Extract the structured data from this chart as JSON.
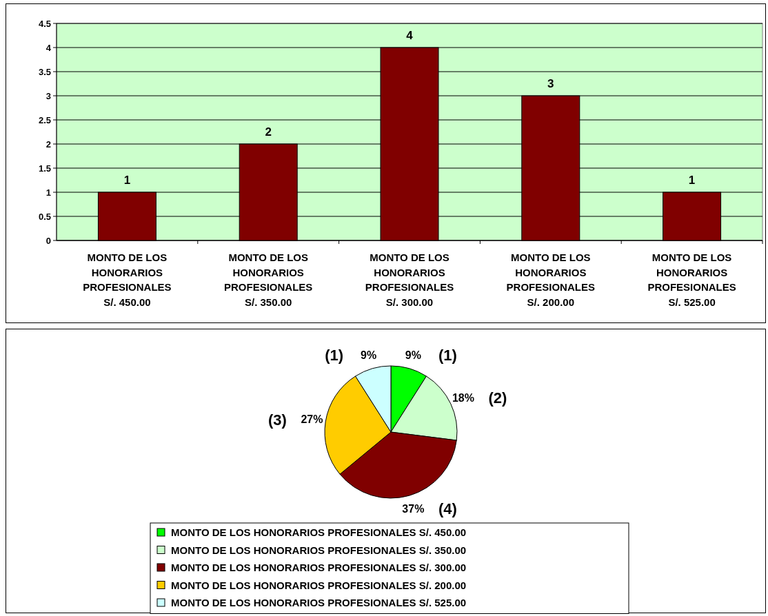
{
  "chart_data": [
    {
      "type": "bar",
      "categories": [
        "MONTO DE LOS HONORARIOS PROFESIONALES S/. 450.00",
        "MONTO DE LOS HONORARIOS PROFESIONALES S/. 350.00",
        "MONTO DE LOS HONORARIOS PROFESIONALES S/. 300.00",
        "MONTO DE LOS HONORARIOS PROFESIONALES S/. 200.00",
        "MONTO DE LOS HONORARIOS PROFESIONALES S/. 525.00"
      ],
      "values": [
        1,
        2,
        4,
        3,
        1
      ],
      "color": "#800000",
      "ylim": [
        0,
        4.5
      ],
      "yticks": [
        0,
        0.5,
        1,
        1.5,
        2,
        2.5,
        3,
        3.5,
        4,
        4.5
      ],
      "grid": "y",
      "data_labels": true
    },
    {
      "type": "pie",
      "categories": [
        "MONTO DE LOS HONORARIOS PROFESIONALES S/. 450.00",
        "MONTO DE LOS HONORARIOS PROFESIONALES S/. 350.00",
        "MONTO DE LOS HONORARIOS PROFESIONALES S/. 300.00",
        "MONTO DE LOS HONORARIOS PROFESIONALES S/. 200.00",
        "MONTO DE LOS HONORARIOS PROFESIONALES S/. 525.00"
      ],
      "values": [
        9,
        18,
        37,
        27,
        9
      ],
      "colors": [
        "#00ff00",
        "#ccffcc",
        "#800000",
        "#ffcc00",
        "#ccffff"
      ],
      "value_labels": [
        "9%",
        "18%",
        "37%",
        "27%",
        "9%"
      ],
      "annotations": [
        "(1)",
        "(2)",
        "(4)",
        "(3)",
        "(1)"
      ],
      "legend": "bottom"
    }
  ]
}
